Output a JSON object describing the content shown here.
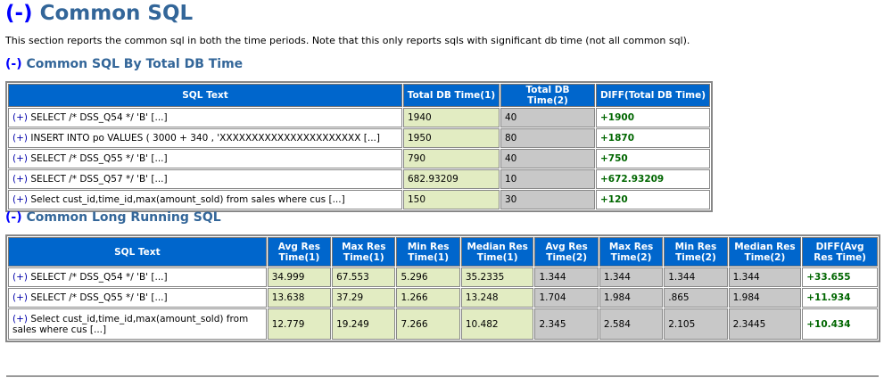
{
  "page": {
    "title_toggle": "(-)",
    "title": "Common SQL",
    "description": "This section reports the common sql in both the time periods. Note that this only reports sqls with significant db time (not all common sql)."
  },
  "section1": {
    "toggle": "(-)",
    "title": "Common SQL By Total DB Time",
    "headers": [
      "SQL Text",
      "Total DB Time(1)",
      "Total DB Time(2)",
      "DIFF(Total DB Time)"
    ],
    "rows": [
      {
        "toggle": "(+)",
        "sql": "SELECT /* DSS_Q54 */ 'B' [...]",
        "t1": "1940",
        "t2": "40",
        "diff": "+1900"
      },
      {
        "toggle": "(+)",
        "sql": "INSERT INTO po VALUES ( 3000 + 340 , 'XXXXXXXXXXXXXXXXXXXXXX [...]",
        "t1": "1950",
        "t2": "80",
        "diff": "+1870"
      },
      {
        "toggle": "(+)",
        "sql": "SELECT /* DSS_Q55 */ 'B' [...]",
        "t1": "790",
        "t2": "40",
        "diff": "+750"
      },
      {
        "toggle": "(+)",
        "sql": "SELECT /* DSS_Q57 */ 'B' [...]",
        "t1": "682.93209",
        "t2": "10",
        "diff": "+672.93209"
      },
      {
        "toggle": "(+)",
        "sql": "Select cust_id,time_id,max(amount_sold) from sales where cus [...]",
        "t1": "150",
        "t2": "30",
        "diff": "+120"
      }
    ]
  },
  "section2": {
    "toggle": "(-)",
    "title": "Common Long Running SQL",
    "headers": [
      "SQL Text",
      "Avg Res Time(1)",
      "Max Res Time(1)",
      "Min Res Time(1)",
      "Median Res Time(1)",
      "Avg Res Time(2)",
      "Max Res Time(2)",
      "Min Res Time(2)",
      "Median Res Time(2)",
      "DIFF(Avg Res Time)"
    ],
    "rows": [
      {
        "toggle": "(+)",
        "sql": "SELECT /* DSS_Q54 */ 'B' [...]",
        "v": [
          "34.999",
          "67.553",
          "5.296",
          "35.2335",
          "1.344",
          "1.344",
          "1.344",
          "1.344"
        ],
        "diff": "+33.655"
      },
      {
        "toggle": "(+)",
        "sql": "SELECT /* DSS_Q55 */ 'B' [...]",
        "v": [
          "13.638",
          "37.29",
          "1.266",
          "13.248",
          "1.704",
          "1.984",
          ".865",
          "1.984"
        ],
        "diff": "+11.934"
      },
      {
        "toggle": "(+)",
        "sql": "Select cust_id,time_id,max(amount_sold) from sales where cus [...]",
        "v": [
          "12.779",
          "19.249",
          "7.266",
          "10.482",
          "2.345",
          "2.584",
          "2.105",
          "2.3445"
        ],
        "diff": "+10.434"
      }
    ]
  }
}
